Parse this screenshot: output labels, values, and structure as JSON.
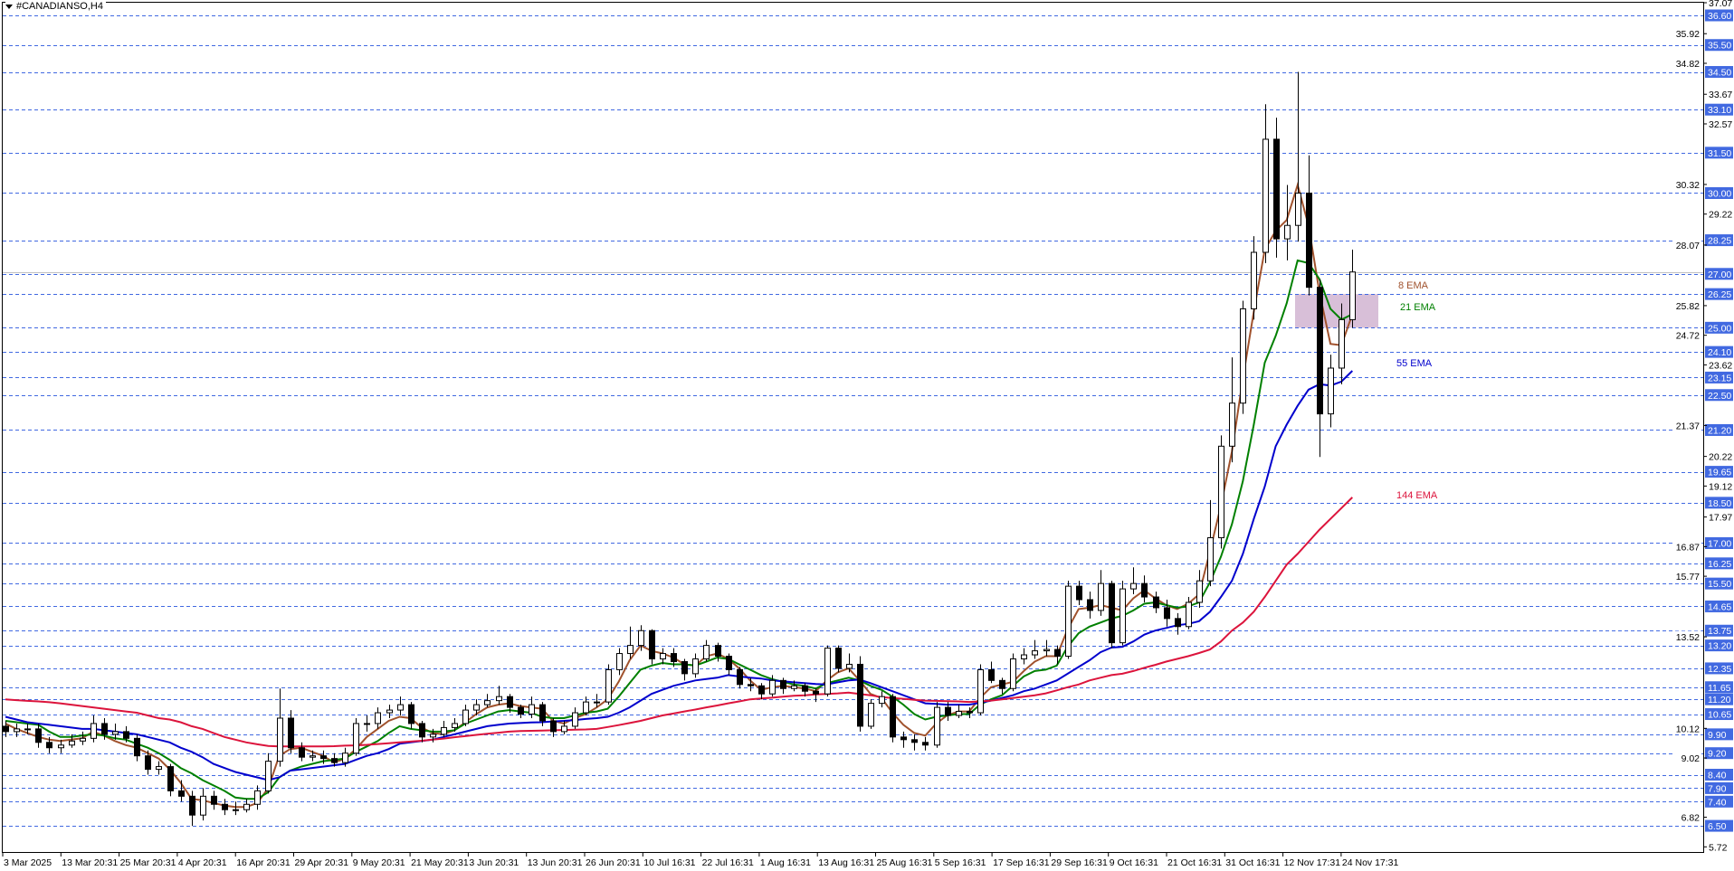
{
  "window": {
    "title": "#CANADIANSO,H4"
  },
  "chart_data": {
    "type": "candlestick",
    "ylim": [
      5.55,
      37.07
    ],
    "grid": false,
    "x_tick_labels": [
      "3 Mar 2025",
      "13 Mar 20:31",
      "25 Mar 20:31",
      "4 Apr 20:31",
      "16 Apr 20:31",
      "29 Apr 20:31",
      "9 May 20:31",
      "21 May 20:31",
      "3 Jun 20:31",
      "13 Jun 20:31",
      "26 Jun 20:31",
      "10 Jul 16:31",
      "22 Jul 16:31",
      "1 Aug 16:31",
      "13 Aug 16:31",
      "25 Aug 16:31",
      "5 Sep 16:31",
      "17 Sep 16:31",
      "29 Sep 16:31",
      "9 Oct 16:31",
      "21 Oct 16:31",
      "31 Oct 16:31",
      "12 Nov 17:31",
      "24 Nov 17:31"
    ],
    "y_tick_labels": [
      37.07,
      35.92,
      34.82,
      33.67,
      32.57,
      30.32,
      29.22,
      28.07,
      25.82,
      24.72,
      23.62,
      21.37,
      20.22,
      19.12,
      17.97,
      16.87,
      15.77,
      13.52,
      10.12,
      9.02,
      6.82,
      5.72
    ],
    "levels": [
      36.6,
      35.5,
      34.5,
      33.1,
      31.5,
      30.0,
      28.25,
      27.0,
      26.25,
      25.0,
      24.1,
      23.15,
      22.5,
      21.2,
      19.65,
      18.5,
      17.0,
      16.25,
      15.5,
      14.65,
      13.75,
      13.2,
      12.35,
      11.65,
      11.2,
      10.65,
      9.9,
      9.2,
      8.4,
      7.9,
      7.4,
      6.5
    ],
    "level_color": "#4169e1",
    "current_price": 27.07,
    "zone": {
      "from": 25.0,
      "to": 26.25,
      "color": "#d8bfd8"
    },
    "candles_ohlc": [
      [
        10.2,
        10.4,
        9.8,
        10.0
      ],
      [
        10.0,
        10.3,
        9.8,
        10.1
      ],
      [
        10.1,
        10.3,
        9.9,
        10.1
      ],
      [
        10.1,
        10.3,
        9.4,
        9.6
      ],
      [
        9.6,
        9.8,
        9.2,
        9.4
      ],
      [
        9.4,
        9.7,
        9.2,
        9.5
      ],
      [
        9.5,
        9.9,
        9.4,
        9.65
      ],
      [
        9.65,
        10.0,
        9.5,
        9.75
      ],
      [
        9.75,
        10.6,
        9.6,
        10.3
      ],
      [
        10.3,
        10.5,
        9.7,
        9.9
      ],
      [
        9.9,
        10.3,
        9.7,
        10.0
      ],
      [
        10.0,
        10.2,
        9.6,
        9.75
      ],
      [
        9.75,
        9.9,
        8.9,
        9.1
      ],
      [
        9.1,
        9.3,
        8.4,
        8.6
      ],
      [
        8.6,
        8.9,
        8.4,
        8.7
      ],
      [
        8.7,
        8.8,
        7.6,
        7.8
      ],
      [
        7.8,
        8.2,
        7.4,
        7.6
      ],
      [
        7.6,
        7.8,
        6.5,
        6.9
      ],
      [
        6.9,
        7.9,
        6.7,
        7.6
      ],
      [
        7.6,
        7.8,
        7.1,
        7.3
      ],
      [
        7.3,
        7.5,
        6.9,
        7.1
      ],
      [
        7.1,
        7.4,
        6.9,
        7.1
      ],
      [
        7.1,
        7.5,
        7.0,
        7.3
      ],
      [
        7.3,
        8.0,
        7.1,
        7.8
      ],
      [
        7.8,
        9.2,
        7.7,
        8.9
      ],
      [
        8.9,
        11.6,
        8.7,
        10.5
      ],
      [
        10.5,
        10.8,
        9.2,
        9.4
      ],
      [
        9.4,
        9.6,
        8.9,
        9.05
      ],
      [
        9.05,
        9.3,
        8.9,
        9.1
      ],
      [
        9.1,
        9.3,
        8.8,
        9.0
      ],
      [
        9.0,
        9.2,
        8.7,
        8.85
      ],
      [
        8.85,
        9.4,
        8.7,
        9.2
      ],
      [
        9.2,
        10.5,
        9.1,
        10.3
      ],
      [
        10.3,
        10.6,
        10.0,
        10.3
      ],
      [
        10.3,
        10.9,
        10.1,
        10.7
      ],
      [
        10.7,
        11.0,
        10.5,
        10.8
      ],
      [
        10.8,
        11.3,
        10.6,
        11.0
      ],
      [
        11.0,
        11.1,
        10.1,
        10.3
      ],
      [
        10.3,
        10.4,
        9.6,
        9.8
      ],
      [
        9.8,
        10.1,
        9.6,
        9.9
      ],
      [
        9.9,
        10.4,
        9.8,
        10.15
      ],
      [
        10.15,
        10.5,
        10.0,
        10.3
      ],
      [
        10.3,
        11.0,
        10.2,
        10.8
      ],
      [
        10.8,
        11.2,
        10.6,
        11.0
      ],
      [
        11.0,
        11.4,
        10.9,
        11.15
      ],
      [
        11.15,
        11.7,
        11.0,
        11.3
      ],
      [
        11.3,
        11.4,
        10.7,
        10.9
      ],
      [
        10.9,
        11.0,
        10.5,
        10.65
      ],
      [
        10.65,
        11.3,
        10.5,
        11.0
      ],
      [
        11.0,
        11.1,
        10.2,
        10.4
      ],
      [
        10.4,
        10.5,
        9.8,
        10.0
      ],
      [
        10.0,
        10.4,
        9.9,
        10.2
      ],
      [
        10.2,
        10.9,
        10.1,
        10.7
      ],
      [
        10.7,
        11.3,
        10.6,
        11.1
      ],
      [
        11.1,
        11.4,
        10.9,
        11.1
      ],
      [
        11.1,
        12.5,
        11.0,
        12.3
      ],
      [
        12.3,
        13.1,
        12.1,
        12.9
      ],
      [
        12.9,
        13.9,
        12.7,
        13.2
      ],
      [
        13.2,
        13.95,
        13.0,
        13.75
      ],
      [
        13.75,
        13.8,
        12.5,
        12.7
      ],
      [
        12.7,
        13.1,
        12.5,
        12.9
      ],
      [
        12.9,
        13.1,
        12.4,
        12.6
      ],
      [
        12.6,
        12.7,
        11.9,
        12.15
      ],
      [
        12.15,
        12.9,
        12.0,
        12.7
      ],
      [
        12.7,
        13.4,
        12.6,
        13.2
      ],
      [
        13.2,
        13.3,
        12.6,
        12.8
      ],
      [
        12.8,
        12.9,
        12.1,
        12.3
      ],
      [
        12.3,
        12.4,
        11.6,
        11.75
      ],
      [
        11.75,
        12.0,
        11.5,
        11.7
      ],
      [
        11.7,
        11.8,
        11.2,
        11.4
      ],
      [
        11.4,
        12.1,
        11.3,
        11.9
      ],
      [
        11.9,
        12.0,
        11.4,
        11.6
      ],
      [
        11.6,
        11.9,
        11.5,
        11.7
      ],
      [
        11.7,
        11.8,
        11.3,
        11.5
      ],
      [
        11.5,
        11.6,
        11.1,
        11.4
      ],
      [
        11.4,
        13.2,
        11.3,
        13.1
      ],
      [
        13.1,
        13.2,
        12.2,
        12.35
      ],
      [
        12.35,
        12.9,
        12.2,
        12.5
      ],
      [
        12.5,
        12.8,
        10.0,
        10.2
      ],
      [
        10.2,
        11.2,
        10.1,
        11.05
      ],
      [
        11.05,
        11.5,
        10.9,
        11.3
      ],
      [
        11.3,
        11.4,
        9.6,
        9.8
      ],
      [
        9.8,
        10.0,
        9.4,
        9.7
      ],
      [
        9.7,
        9.9,
        9.3,
        9.6
      ],
      [
        9.6,
        9.8,
        9.3,
        9.5
      ],
      [
        9.5,
        11.1,
        9.4,
        10.9
      ],
      [
        10.9,
        11.1,
        10.4,
        10.6
      ],
      [
        10.6,
        11.0,
        10.5,
        10.75
      ],
      [
        10.75,
        10.9,
        10.5,
        10.7
      ],
      [
        10.7,
        12.5,
        10.6,
        12.3
      ],
      [
        12.3,
        12.6,
        11.8,
        11.9
      ],
      [
        11.9,
        12.0,
        11.4,
        11.6
      ],
      [
        11.6,
        12.9,
        11.5,
        12.7
      ],
      [
        12.7,
        13.1,
        12.5,
        12.85
      ],
      [
        12.85,
        13.4,
        12.7,
        13.0
      ],
      [
        13.0,
        13.4,
        12.8,
        13.05
      ],
      [
        13.05,
        13.2,
        12.5,
        12.8
      ],
      [
        12.8,
        15.6,
        12.7,
        15.4
      ],
      [
        15.4,
        15.6,
        14.7,
        14.9
      ],
      [
        14.9,
        15.2,
        14.2,
        14.5
      ],
      [
        14.5,
        16.0,
        14.3,
        15.5
      ],
      [
        15.5,
        15.6,
        13.1,
        13.3
      ],
      [
        13.3,
        15.6,
        13.2,
        15.3
      ],
      [
        15.3,
        16.1,
        15.1,
        15.5
      ],
      [
        15.5,
        15.8,
        14.8,
        15.0
      ],
      [
        15.0,
        15.2,
        14.4,
        14.6
      ],
      [
        14.6,
        14.9,
        13.9,
        14.2
      ],
      [
        14.2,
        14.4,
        13.6,
        13.9
      ],
      [
        13.9,
        15.0,
        13.8,
        14.8
      ],
      [
        14.8,
        16.0,
        14.6,
        15.6
      ],
      [
        15.6,
        18.6,
        15.4,
        17.2
      ],
      [
        17.2,
        21.0,
        16.8,
        20.6
      ],
      [
        20.6,
        23.9,
        20.0,
        22.2
      ],
      [
        22.2,
        26.0,
        21.8,
        25.7
      ],
      [
        25.7,
        28.4,
        25.3,
        27.8
      ],
      [
        27.8,
        33.3,
        27.4,
        32.0
      ],
      [
        32.0,
        32.8,
        27.6,
        28.3
      ],
      [
        28.3,
        30.3,
        27.5,
        28.8
      ],
      [
        28.8,
        34.5,
        28.2,
        30.0
      ],
      [
        30.0,
        31.4,
        26.2,
        26.5
      ],
      [
        26.5,
        26.8,
        20.2,
        21.8
      ],
      [
        21.8,
        24.0,
        21.3,
        23.5
      ],
      [
        23.5,
        25.9,
        22.9,
        25.3
      ],
      [
        25.3,
        27.9,
        25.0,
        27.07
      ]
    ],
    "series": [
      {
        "name": "8 EMA",
        "color": "#a0522d",
        "values": [
          10.3,
          10.1,
          9.95,
          9.8,
          9.7,
          9.65,
          9.7,
          9.75,
          10.0,
          9.85,
          9.65,
          9.5,
          9.4,
          9.2,
          9.0,
          8.6,
          8.1,
          7.5,
          7.45,
          7.35,
          7.25,
          7.2,
          7.2,
          7.35,
          7.9,
          9.1,
          9.35,
          9.4,
          9.25,
          9.1,
          8.85,
          9.0,
          9.35,
          9.8,
          10.1,
          10.4,
          10.55,
          10.5,
          10.15,
          9.95,
          9.9,
          10.05,
          10.35,
          10.65,
          10.9,
          11.0,
          11.05,
          10.95,
          10.9,
          10.85,
          10.4,
          10.3,
          10.5,
          10.65,
          10.9,
          11.2,
          11.85,
          12.65,
          13.2,
          13.0,
          12.9,
          12.75,
          12.5,
          12.45,
          12.8,
          12.9,
          12.7,
          12.35,
          11.9,
          11.55,
          11.65,
          11.7,
          11.65,
          11.6,
          11.5,
          11.9,
          12.2,
          12.35,
          11.9,
          11.4,
          11.25,
          10.7,
          10.25,
          9.95,
          9.85,
          10.3,
          10.6,
          10.75,
          10.75,
          11.25,
          11.65,
          11.75,
          11.85,
          12.25,
          12.6,
          12.8,
          12.8,
          13.8,
          14.55,
          14.6,
          14.7,
          14.6,
          14.5,
          14.95,
          15.25,
          14.95,
          14.7,
          14.55,
          14.75,
          15.1,
          16.7,
          18.4,
          20.4,
          23.1,
          25.6,
          27.9,
          28.6,
          29.0,
          30.3,
          28.8,
          26.3,
          24.4,
          24.35,
          25.5
        ]
      },
      {
        "name": "21 EMA",
        "color": "#008000",
        "values": [
          10.4,
          10.35,
          10.3,
          10.25,
          10.0,
          9.8,
          9.8,
          9.85,
          9.9,
          9.85,
          9.75,
          9.7,
          9.55,
          9.4,
          9.2,
          8.95,
          8.65,
          8.45,
          8.2,
          8.0,
          7.8,
          7.55,
          7.5,
          7.5,
          7.75,
          8.3,
          8.55,
          8.7,
          8.8,
          8.9,
          8.95,
          9.0,
          9.25,
          9.45,
          9.65,
          9.95,
          10.2,
          10.1,
          10.05,
          10.0,
          10.0,
          10.05,
          10.3,
          10.45,
          10.6,
          10.75,
          10.8,
          10.75,
          10.7,
          10.55,
          10.5,
          10.5,
          10.6,
          10.7,
          10.75,
          10.85,
          11.3,
          11.8,
          12.3,
          12.45,
          12.55,
          12.5,
          12.5,
          12.45,
          12.6,
          12.75,
          12.7,
          12.5,
          12.3,
          12.1,
          11.95,
          11.85,
          11.75,
          11.7,
          11.6,
          11.8,
          11.9,
          12.0,
          11.9,
          11.7,
          11.55,
          11.3,
          11.0,
          10.65,
          10.45,
          10.55,
          10.6,
          10.65,
          10.65,
          11.0,
          11.2,
          11.35,
          11.7,
          12.05,
          12.25,
          12.3,
          12.45,
          13.15,
          13.65,
          13.9,
          14.05,
          14.2,
          14.3,
          14.5,
          14.75,
          14.8,
          14.7,
          14.6,
          14.65,
          14.8,
          15.55,
          16.5,
          17.7,
          19.3,
          21.4,
          23.7,
          24.7,
          25.9,
          27.5,
          27.4,
          26.8,
          25.7,
          25.3,
          25.5
        ]
      },
      {
        "name": "55 EMA",
        "color": "#0000cd",
        "values": [
          10.55,
          10.45,
          10.35,
          10.3,
          10.25,
          10.2,
          10.15,
          10.1,
          10.1,
          10.05,
          10.0,
          9.95,
          9.9,
          9.8,
          9.7,
          9.6,
          9.4,
          9.25,
          9.05,
          8.8,
          8.65,
          8.5,
          8.4,
          8.3,
          8.2,
          8.3,
          8.55,
          8.6,
          8.65,
          8.7,
          8.75,
          8.8,
          8.95,
          9.1,
          9.2,
          9.35,
          9.55,
          9.6,
          9.65,
          9.7,
          9.8,
          9.9,
          10.0,
          10.1,
          10.2,
          10.25,
          10.3,
          10.32,
          10.34,
          10.35,
          10.38,
          10.4,
          10.43,
          10.47,
          10.5,
          10.55,
          10.7,
          10.9,
          11.15,
          11.4,
          11.55,
          11.7,
          11.8,
          11.9,
          11.95,
          12.0,
          12.1,
          12.05,
          12.0,
          11.97,
          11.9,
          11.87,
          11.83,
          11.8,
          11.77,
          11.75,
          11.83,
          11.9,
          11.93,
          11.8,
          11.65,
          11.5,
          11.35,
          11.2,
          11.05,
          11.03,
          11.0,
          11.0,
          11.0,
          11.07,
          11.15,
          11.25,
          11.35,
          11.5,
          11.6,
          11.75,
          11.9,
          12.15,
          12.4,
          12.65,
          12.95,
          13.12,
          13.15,
          13.35,
          13.6,
          13.75,
          13.85,
          13.95,
          14.0,
          14.1,
          14.45,
          15.0,
          15.6,
          16.6,
          17.9,
          19.1,
          20.6,
          21.4,
          22.1,
          22.7,
          22.9,
          22.85,
          23.0,
          23.4
        ]
      },
      {
        "name": "144 EMA",
        "color": "#dc143c",
        "values": [
          11.2,
          11.17,
          11.14,
          11.12,
          11.09,
          11.05,
          11.0,
          10.95,
          10.9,
          10.85,
          10.8,
          10.75,
          10.7,
          10.6,
          10.5,
          10.45,
          10.35,
          10.2,
          10.1,
          9.95,
          9.8,
          9.7,
          9.6,
          9.53,
          9.47,
          9.45,
          9.45,
          9.45,
          9.45,
          9.45,
          9.46,
          9.48,
          9.49,
          9.51,
          9.54,
          9.57,
          9.6,
          9.63,
          9.66,
          9.7,
          9.74,
          9.79,
          9.83,
          9.88,
          9.92,
          9.96,
          10.0,
          10.02,
          10.03,
          10.04,
          10.05,
          10.06,
          10.07,
          10.08,
          10.1,
          10.17,
          10.24,
          10.32,
          10.4,
          10.5,
          10.6,
          10.67,
          10.75,
          10.82,
          10.9,
          10.97,
          11.05,
          11.12,
          11.2,
          11.23,
          11.26,
          11.3,
          11.33,
          11.35,
          11.38,
          11.4,
          11.42,
          11.45,
          11.4,
          11.35,
          11.28,
          11.25,
          11.22,
          11.18,
          11.15,
          11.14,
          11.13,
          11.12,
          11.1,
          11.12,
          11.15,
          11.2,
          11.25,
          11.3,
          11.35,
          11.42,
          11.53,
          11.65,
          11.75,
          11.9,
          12.0,
          12.1,
          12.15,
          12.25,
          12.37,
          12.48,
          12.6,
          12.7,
          12.8,
          12.92,
          13.05,
          13.35,
          13.75,
          14.05,
          14.45,
          15.0,
          15.6,
          16.2,
          16.6,
          17.05,
          17.5,
          17.9,
          18.3,
          18.7
        ]
      }
    ]
  }
}
